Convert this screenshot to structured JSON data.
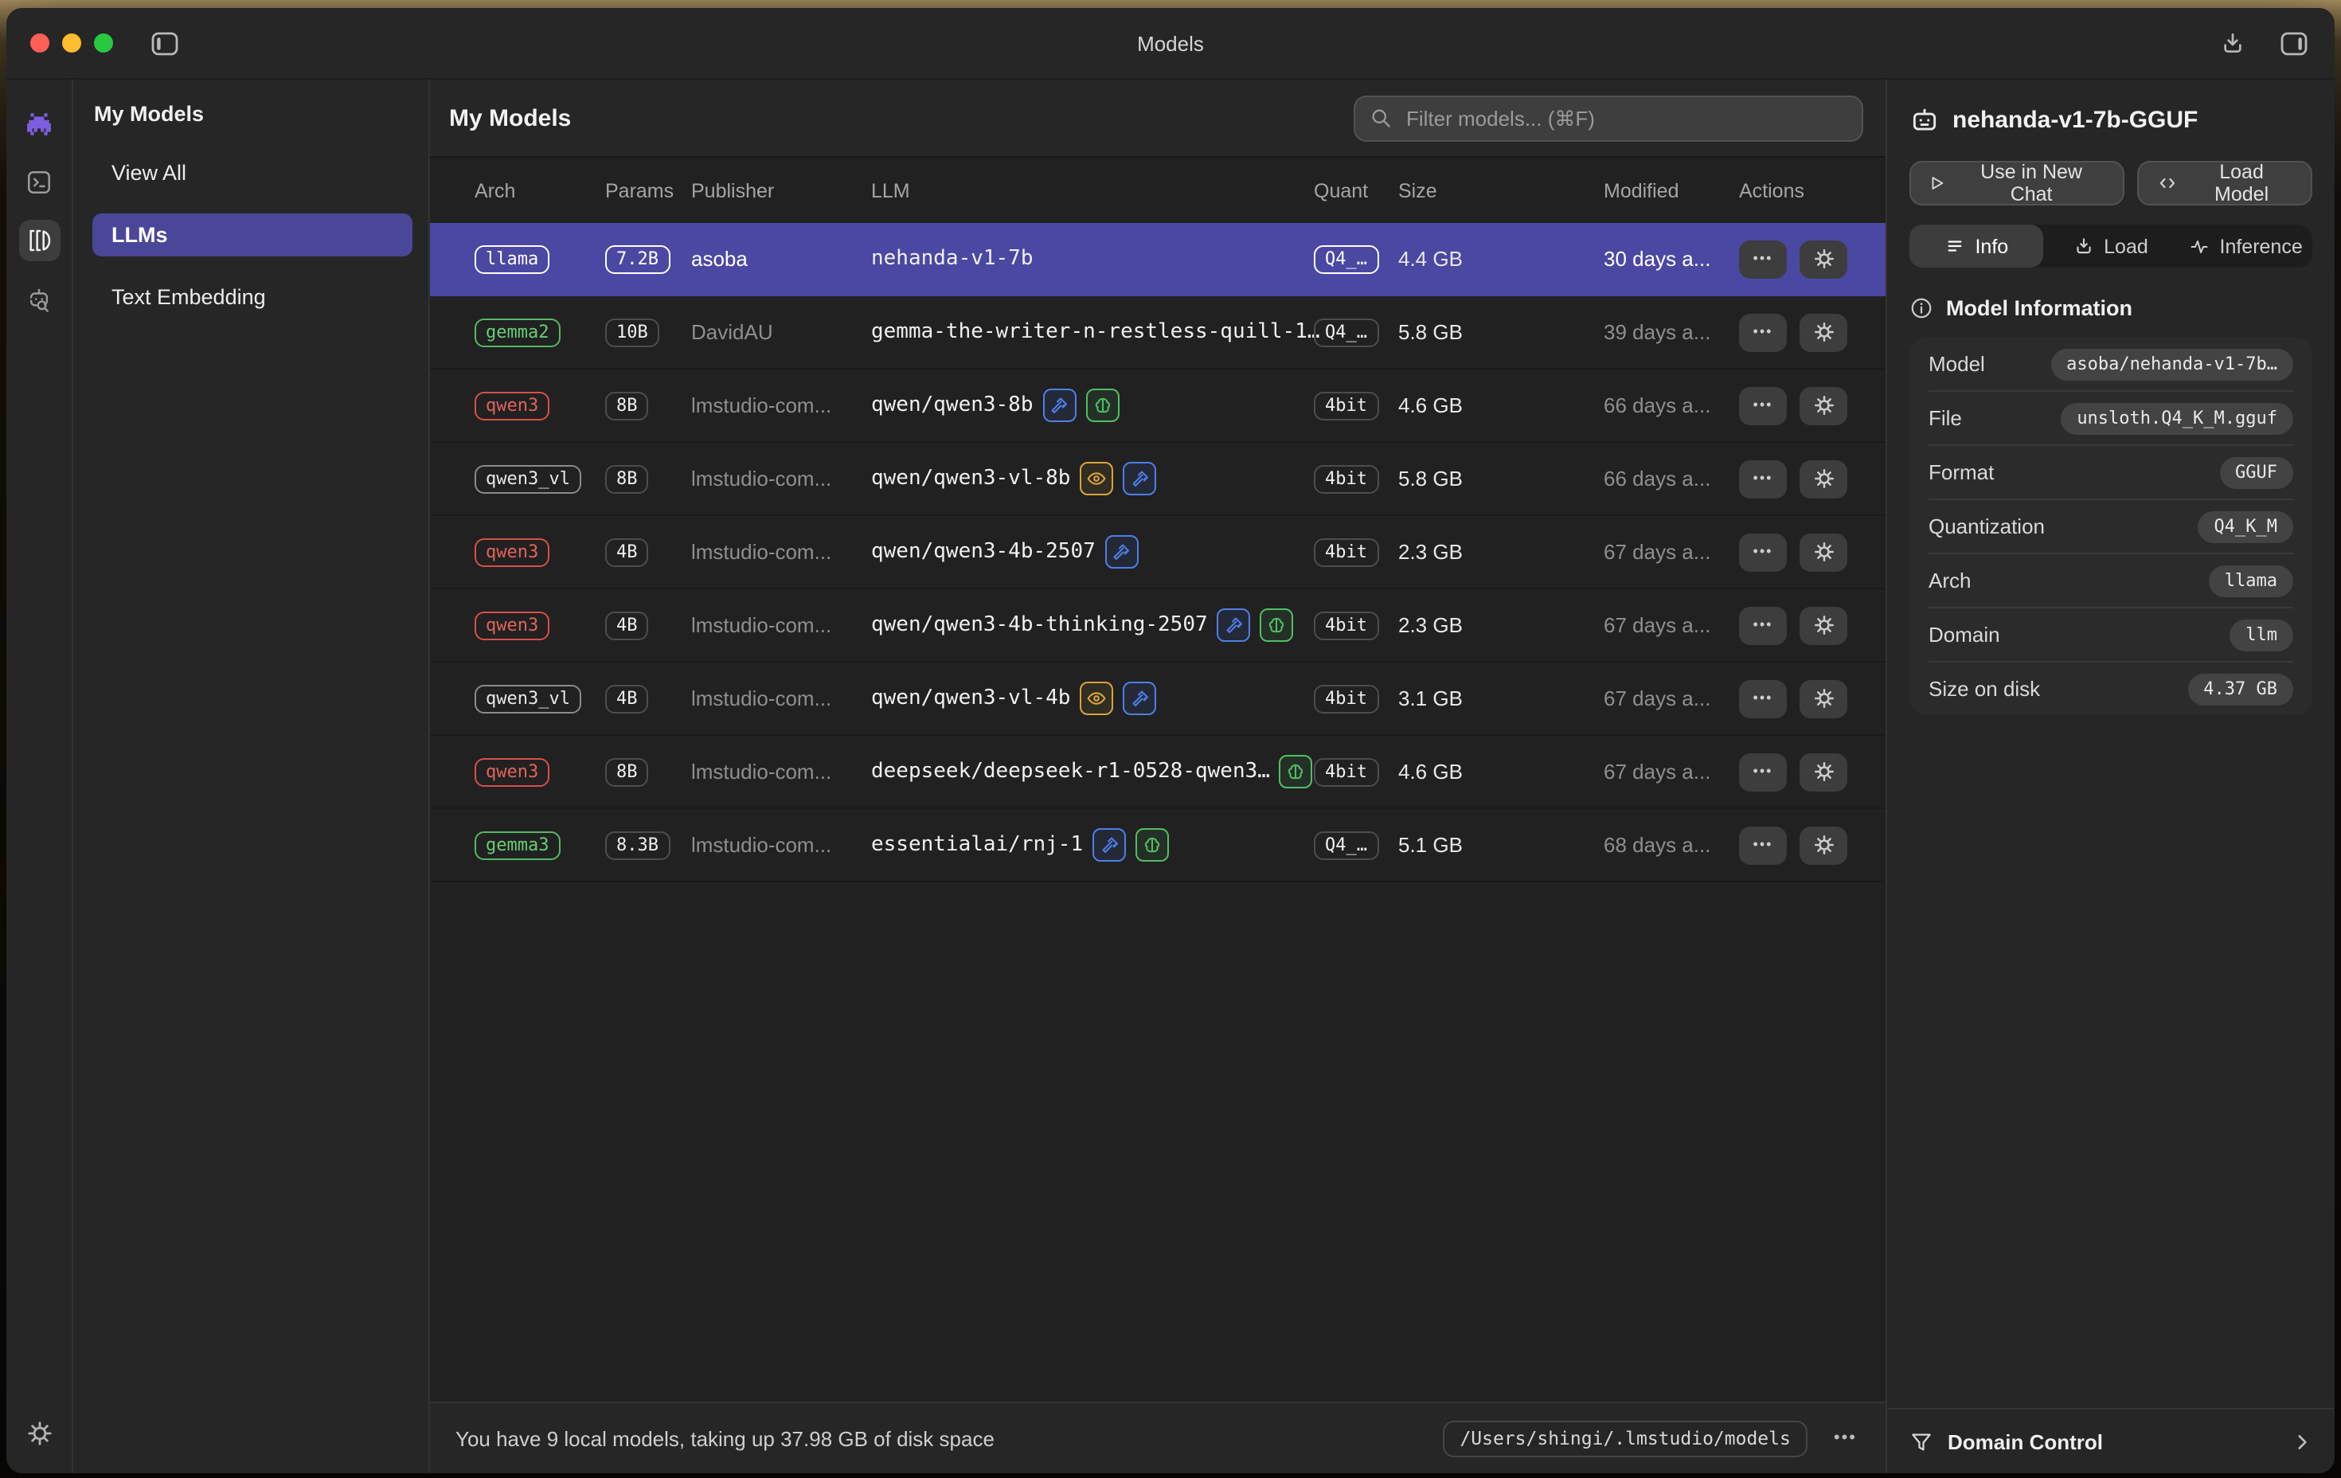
{
  "window": {
    "title": "Models"
  },
  "sidebar": {
    "rail_icons": [
      "chat-icon",
      "developer-icon",
      "my-models-icon",
      "discover-icon",
      "settings-icon"
    ],
    "nav": {
      "header": "My Models",
      "items": [
        {
          "label": "View All",
          "active": false
        },
        {
          "label": "LLMs",
          "active": true
        },
        {
          "label": "Text Embedding",
          "active": false
        }
      ]
    }
  },
  "content": {
    "title": "My Models",
    "filter_placeholder": "Filter models... (⌘F)",
    "table": {
      "columns": [
        "Arch",
        "Params",
        "Publisher",
        "LLM",
        "Quant",
        "Size",
        "Modified",
        "Actions"
      ],
      "rows": [
        {
          "arch": "llama",
          "arch_color": "white",
          "params": "7.2B",
          "publisher": "asoba",
          "llm": "nehanda-v1-7b",
          "capabilities": [],
          "quant": "Q4_…",
          "size": "4.4 GB",
          "modified": "30 days a...",
          "selected": true
        },
        {
          "arch": "gemma2",
          "arch_color": "green",
          "params": "10B",
          "publisher": "DavidAU",
          "llm": "gemma-the-writer-n-restless-quill-1…",
          "capabilities": [],
          "quant": "Q4_…",
          "size": "5.8 GB",
          "modified": "39 days a...",
          "selected": false
        },
        {
          "arch": "qwen3",
          "arch_color": "red",
          "params": "8B",
          "publisher": "lmstudio-com...",
          "llm": "qwen/qwen3-8b",
          "capabilities": [
            "tool",
            "reasoning"
          ],
          "quant": "4bit",
          "size": "4.6 GB",
          "modified": "66 days a...",
          "selected": false
        },
        {
          "arch": "qwen3_vl",
          "arch_color": "gray",
          "params": "8B",
          "publisher": "lmstudio-com...",
          "llm": "qwen/qwen3-vl-8b",
          "capabilities": [
            "vision",
            "tool"
          ],
          "quant": "4bit",
          "size": "5.8 GB",
          "modified": "66 days a...",
          "selected": false
        },
        {
          "arch": "qwen3",
          "arch_color": "red",
          "params": "4B",
          "publisher": "lmstudio-com...",
          "llm": "qwen/qwen3-4b-2507",
          "capabilities": [
            "tool"
          ],
          "quant": "4bit",
          "size": "2.3 GB",
          "modified": "67 days a...",
          "selected": false
        },
        {
          "arch": "qwen3",
          "arch_color": "red",
          "params": "4B",
          "publisher": "lmstudio-com...",
          "llm": "qwen/qwen3-4b-thinking-2507",
          "capabilities": [
            "tool",
            "reasoning"
          ],
          "quant": "4bit",
          "size": "2.3 GB",
          "modified": "67 days a...",
          "selected": false
        },
        {
          "arch": "qwen3_vl",
          "arch_color": "gray",
          "params": "4B",
          "publisher": "lmstudio-com...",
          "llm": "qwen/qwen3-vl-4b",
          "capabilities": [
            "vision",
            "tool"
          ],
          "quant": "4bit",
          "size": "3.1 GB",
          "modified": "67 days a...",
          "selected": false
        },
        {
          "arch": "qwen3",
          "arch_color": "red",
          "params": "8B",
          "publisher": "lmstudio-com...",
          "llm": "deepseek/deepseek-r1-0528-qwen3…",
          "capabilities": [
            "reasoning"
          ],
          "quant": "4bit",
          "size": "4.6 GB",
          "modified": "67 days a...",
          "selected": false
        },
        {
          "arch": "gemma3",
          "arch_color": "green",
          "params": "8.3B",
          "publisher": "lmstudio-com...",
          "llm": "essentialai/rnj-1",
          "capabilities": [
            "tool",
            "reasoning"
          ],
          "quant": "Q4_…",
          "size": "5.1 GB",
          "modified": "68 days a...",
          "selected": false
        }
      ]
    },
    "footer": {
      "summary": "You have 9 local models, taking up 37.98 GB of disk space",
      "path": "/Users/shingi/.lmstudio/models",
      "more_label": "•••"
    }
  },
  "details": {
    "title": "nehanda-v1-7b-GGUF",
    "buttons": {
      "use_in_new_chat": "Use in New Chat",
      "load_model": "Load Model"
    },
    "tabs": [
      {
        "label": "Info",
        "active": true
      },
      {
        "label": "Load",
        "active": false
      },
      {
        "label": "Inference",
        "active": false
      }
    ],
    "section_title": "Model Information",
    "info_rows": [
      {
        "label": "Model",
        "value": "asoba/nehanda-v1-7b…"
      },
      {
        "label": "File",
        "value": "unsloth.Q4_K_M.gguf"
      },
      {
        "label": "Format",
        "value": "GGUF"
      },
      {
        "label": "Quantization",
        "value": "Q4_K_M"
      },
      {
        "label": "Arch",
        "value": "llama"
      },
      {
        "label": "Domain",
        "value": "llm"
      },
      {
        "label": "Size on disk",
        "value": "4.37 GB"
      }
    ],
    "domain_control_label": "Domain Control"
  },
  "colors": {
    "selected_row": "#4b48a3",
    "nav_active": "#4a4799",
    "brand_purple": "#7e5ee0",
    "badge_green": "#55b864",
    "badge_red": "#d8504a",
    "cap_tool_blue": "#4d7fe8",
    "cap_vision_yellow": "#d9a43c",
    "cap_reasoning_green": "#4fbf63",
    "traffic_red": "#ff5f57",
    "traffic_yellow": "#febc2e",
    "traffic_green": "#28c840"
  }
}
